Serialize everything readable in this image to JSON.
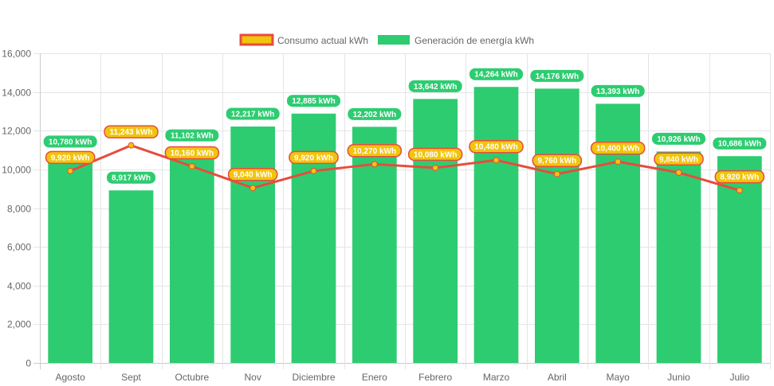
{
  "chart_data": {
    "type": "bar",
    "title": "",
    "xlabel": "",
    "ylabel": "",
    "ylim": [
      0,
      16000
    ],
    "y_ticks": [
      0,
      2000,
      4000,
      6000,
      8000,
      10000,
      12000,
      14000,
      16000
    ],
    "grid": true,
    "legend_position": "top-center",
    "categories": [
      "Agosto",
      "Sept",
      "Octubre",
      "Nov",
      "Diciembre",
      "Enero",
      "Febrero",
      "Marzo",
      "Abril",
      "Mayo",
      "Junio",
      "Julio"
    ],
    "unit_suffix": " kWh",
    "series": [
      {
        "name": "Consumo actual kWh",
        "type": "line",
        "color": "#e74c3c",
        "point_color": "#f1c40f",
        "label_bg": "#f1c40f",
        "label_border": "#e74c3c",
        "values": [
          9920,
          11243,
          10160,
          9040,
          9920,
          10270,
          10080,
          10480,
          9760,
          10400,
          9840,
          8920
        ]
      },
      {
        "name": "Generación de energía kWh",
        "type": "bar",
        "color": "#2ecc71",
        "label_bg": "#2ecc71",
        "values": [
          10780,
          8917,
          11102,
          12217,
          12885,
          12202,
          13642,
          14264,
          14176,
          13393,
          10926,
          10686
        ]
      }
    ]
  }
}
